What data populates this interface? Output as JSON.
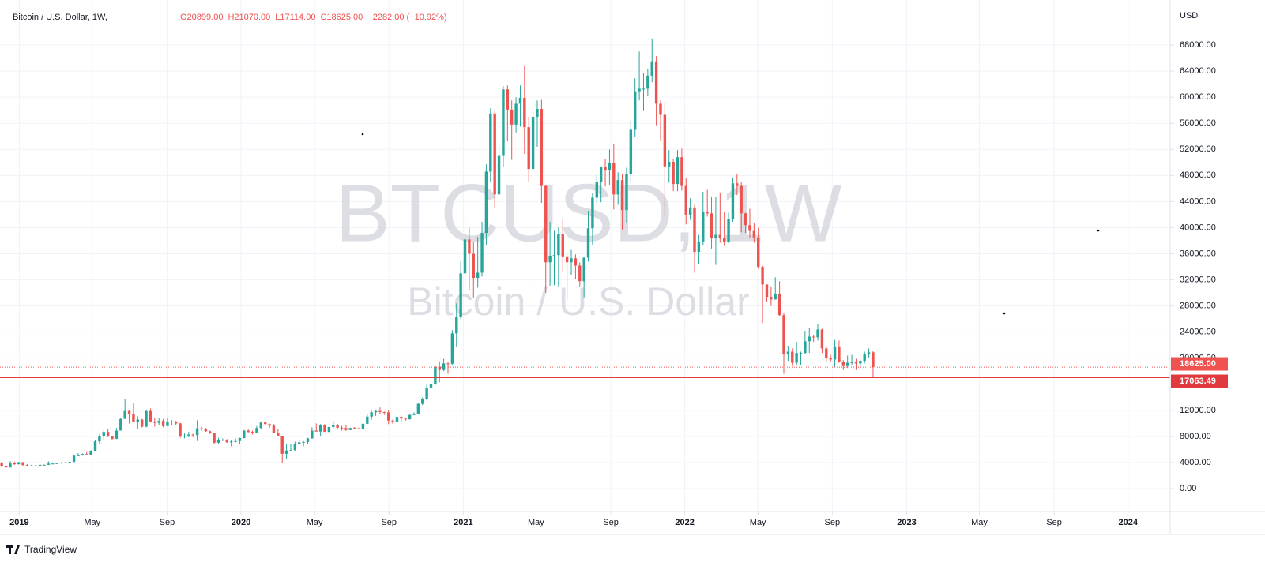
{
  "chart_data": {
    "type": "candlestick",
    "title": "Bitcoin / U.S. Dollar, 1W,",
    "ohlc_legend": [
      "O20899.00",
      "H21070.00",
      "L17114.00",
      "C18625.00",
      "−2282.00 (−10.92%)"
    ],
    "watermark": "BTCUSD, 1W",
    "watermark_subtitle": "Bitcoin / U.S. Dollar",
    "currency": "USD",
    "brand": "TradingView",
    "up_color": "#26a69a",
    "down_color": "#ef5350",
    "grid": true,
    "last_price": {
      "value": 18625,
      "label": "18625.00"
    },
    "price_line": {
      "value": 17063.49,
      "label": "17063.49",
      "color": "#e03a3e"
    },
    "ylim": [
      -3500,
      74900
    ],
    "xlim": [
      -0.4,
      274.9
    ],
    "yticks": [
      {
        "value": 0,
        "label": "0.00"
      },
      {
        "value": 4000,
        "label": "4000.00"
      },
      {
        "value": 8000,
        "label": "8000.00"
      },
      {
        "value": 12000,
        "label": "12000.00"
      },
      {
        "value": 20000,
        "label": "20000.00"
      },
      {
        "value": 24000,
        "label": "24000.00"
      },
      {
        "value": 28000,
        "label": "28000.00"
      },
      {
        "value": 32000,
        "label": "32000.00"
      },
      {
        "value": 36000,
        "label": "36000.00"
      },
      {
        "value": 40000,
        "label": "40000.00"
      },
      {
        "value": 44000,
        "label": "44000.00"
      },
      {
        "value": 48000,
        "label": "48000.00"
      },
      {
        "value": 52000,
        "label": "52000.00"
      },
      {
        "value": 56000,
        "label": "56000.00"
      },
      {
        "value": 60000,
        "label": "60000.00"
      },
      {
        "value": 64000,
        "label": "64000.00"
      },
      {
        "value": 68000,
        "label": "68000.00"
      }
    ],
    "xticks": [
      {
        "value": 4.14,
        "label": "2019"
      },
      {
        "value": 21.3,
        "label": "May"
      },
      {
        "value": 38.9,
        "label": "Sep"
      },
      {
        "value": 56.3,
        "label": "2020"
      },
      {
        "value": 73.6,
        "label": "May"
      },
      {
        "value": 91.1,
        "label": "Sep"
      },
      {
        "value": 108.6,
        "label": "2021"
      },
      {
        "value": 125.7,
        "label": "May"
      },
      {
        "value": 143.3,
        "label": "Sep"
      },
      {
        "value": 160.7,
        "label": "2022"
      },
      {
        "value": 177.9,
        "label": "May"
      },
      {
        "value": 195.4,
        "label": "Sep"
      },
      {
        "value": 212.9,
        "label": "2023"
      },
      {
        "value": 230,
        "label": "May"
      },
      {
        "value": 247.6,
        "label": "Sep"
      },
      {
        "value": 265,
        "label": "2024"
      }
    ],
    "candles": [
      [
        4000,
        4100,
        3250,
        3500
      ],
      [
        3500,
        3600,
        3200,
        3250
      ],
      [
        3250,
        4200,
        3250,
        4000
      ],
      [
        4000,
        4150,
        3650,
        3750
      ],
      [
        3750,
        4100,
        3700,
        4050
      ],
      [
        4050,
        4100,
        3550,
        3600
      ],
      [
        3600,
        3750,
        3500,
        3550
      ],
      [
        3550,
        3650,
        3500,
        3550
      ],
      [
        3550,
        3600,
        3380,
        3400
      ],
      [
        3400,
        3700,
        3380,
        3650
      ],
      [
        3650,
        3700,
        3600,
        3650
      ],
      [
        3650,
        4200,
        3650,
        3850
      ],
      [
        3850,
        3900,
        3750,
        3850
      ],
      [
        3850,
        3950,
        3800,
        3900
      ],
      [
        3900,
        4050,
        3850,
        4000
      ],
      [
        4000,
        4100,
        3950,
        4000
      ],
      [
        4000,
        4150,
        3950,
        4100
      ],
      [
        4100,
        5100,
        4100,
        5050
      ],
      [
        5050,
        5450,
        5000,
        5100
      ],
      [
        5100,
        5400,
        5050,
        5300
      ],
      [
        5300,
        5600,
        5100,
        5200
      ],
      [
        5200,
        5900,
        5200,
        5750
      ],
      [
        5750,
        7400,
        5750,
        7250
      ],
      [
        7250,
        8300,
        6800,
        8000
      ],
      [
        8000,
        8900,
        7500,
        8700
      ],
      [
        8700,
        9100,
        7900,
        8000
      ],
      [
        8000,
        8100,
        7500,
        7650
      ],
      [
        7650,
        9300,
        7600,
        8900
      ],
      [
        8900,
        10900,
        8900,
        10700
      ],
      [
        10700,
        13800,
        10700,
        11900
      ],
      [
        11900,
        12000,
        10000,
        11400
      ],
      [
        11400,
        13100,
        10200,
        10200
      ],
      [
        10200,
        11100,
        9100,
        10600
      ],
      [
        10600,
        10700,
        9400,
        9500
      ],
      [
        9500,
        12100,
        9400,
        11900
      ],
      [
        11900,
        12300,
        10200,
        10300
      ],
      [
        10300,
        10900,
        9500,
        10100
      ],
      [
        10100,
        10900,
        9800,
        10400
      ],
      [
        10400,
        10700,
        9400,
        9600
      ],
      [
        9600,
        10900,
        9600,
        10300
      ],
      [
        10300,
        10500,
        9800,
        10300
      ],
      [
        10300,
        10400,
        9800,
        10000
      ],
      [
        10000,
        10100,
        7800,
        8000
      ],
      [
        8000,
        8500,
        7700,
        8100
      ],
      [
        8100,
        8700,
        7900,
        8300
      ],
      [
        8300,
        8400,
        7900,
        8200
      ],
      [
        8200,
        10500,
        7300,
        9250
      ],
      [
        9250,
        9500,
        8900,
        9200
      ],
      [
        9200,
        9300,
        8700,
        8800
      ],
      [
        8800,
        8900,
        8400,
        8500
      ],
      [
        8500,
        8600,
        6800,
        7050
      ],
      [
        7050,
        7800,
        6850,
        7400
      ],
      [
        7400,
        7700,
        7300,
        7500
      ],
      [
        7500,
        7600,
        7050,
        7100
      ],
      [
        7100,
        7500,
        6500,
        7250
      ],
      [
        7250,
        7700,
        7100,
        7300
      ],
      [
        7300,
        7800,
        6900,
        7750
      ],
      [
        7750,
        9000,
        7700,
        8900
      ],
      [
        8900,
        9200,
        8500,
        8700
      ],
      [
        8700,
        8900,
        8300,
        8600
      ],
      [
        8600,
        9600,
        8600,
        9300
      ],
      [
        9300,
        10200,
        9200,
        10150
      ],
      [
        10150,
        10500,
        9700,
        9900
      ],
      [
        9900,
        10000,
        9300,
        9650
      ],
      [
        9650,
        9900,
        8500,
        8550
      ],
      [
        8550,
        9200,
        8000,
        8000
      ],
      [
        8000,
        8000,
        3900,
        5350
      ],
      [
        5350,
        6900,
        4500,
        5850
      ],
      [
        5850,
        6900,
        5750,
        5900
      ],
      [
        5900,
        7200,
        5850,
        6900
      ],
      [
        6900,
        7450,
        6750,
        7100
      ],
      [
        7100,
        7300,
        6500,
        7150
      ],
      [
        7150,
        7800,
        6800,
        7700
      ],
      [
        7700,
        9400,
        7650,
        8900
      ],
      [
        8900,
        10000,
        8800,
        8750
      ],
      [
        8750,
        9900,
        8100,
        9700
      ],
      [
        9700,
        9900,
        8800,
        8700
      ],
      [
        8700,
        9600,
        8600,
        9450
      ],
      [
        9450,
        10400,
        9300,
        9750
      ],
      [
        9750,
        9950,
        9100,
        9350
      ],
      [
        9350,
        9600,
        8900,
        9300
      ],
      [
        9300,
        9700,
        8850,
        9000
      ],
      [
        9000,
        9350,
        8950,
        9300
      ],
      [
        9300,
        9450,
        9100,
        9250
      ],
      [
        9250,
        9300,
        9100,
        9200
      ],
      [
        9200,
        9950,
        9150,
        9950
      ],
      [
        9950,
        11450,
        9900,
        11050
      ],
      [
        11050,
        11900,
        10600,
        11700
      ],
      [
        11700,
        12100,
        11150,
        11900
      ],
      [
        11900,
        12450,
        11400,
        11750
      ],
      [
        11750,
        11800,
        11300,
        11700
      ],
      [
        11700,
        12050,
        9900,
        10450
      ],
      [
        10450,
        10600,
        9900,
        10300
      ],
      [
        10300,
        11100,
        10200,
        11000
      ],
      [
        11000,
        11200,
        10150,
        10750
      ],
      [
        10750,
        10900,
        10400,
        10650
      ],
      [
        10650,
        11400,
        10600,
        11300
      ],
      [
        11300,
        11700,
        11250,
        11500
      ],
      [
        11500,
        13200,
        11400,
        13000
      ],
      [
        13000,
        14000,
        12800,
        13800
      ],
      [
        13800,
        15950,
        13500,
        15500
      ],
      [
        15500,
        16450,
        15000,
        16000
      ],
      [
        16000,
        18800,
        15900,
        18700
      ],
      [
        18700,
        19400,
        16300,
        18200
      ],
      [
        18200,
        19900,
        18000,
        19200
      ],
      [
        19200,
        19400,
        17600,
        19150
      ],
      [
        19150,
        24300,
        19000,
        23800
      ],
      [
        23800,
        28400,
        21800,
        26300
      ],
      [
        26300,
        34800,
        26000,
        33000
      ],
      [
        33000,
        42000,
        30000,
        38200
      ],
      [
        38200,
        40000,
        30400,
        36000
      ],
      [
        36000,
        37800,
        29200,
        32300
      ],
      [
        32300,
        38600,
        30800,
        33100
      ],
      [
        33100,
        40900,
        32500,
        39200
      ],
      [
        39200,
        49700,
        37400,
        48600
      ],
      [
        48600,
        58300,
        47000,
        57500
      ],
      [
        57500,
        58000,
        43000,
        45100
      ],
      [
        45100,
        52600,
        44900,
        51000
      ],
      [
        51000,
        61700,
        49300,
        61200
      ],
      [
        61200,
        61800,
        53300,
        58100
      ],
      [
        58100,
        59500,
        50400,
        55800
      ],
      [
        55800,
        60000,
        54600,
        59000
      ],
      [
        59000,
        61800,
        55500,
        59900
      ],
      [
        59900,
        64900,
        51300,
        55400
      ],
      [
        55400,
        57000,
        47000,
        49000
      ],
      [
        49000,
        57900,
        48800,
        57000
      ],
      [
        57000,
        59500,
        52400,
        58200
      ],
      [
        58200,
        59600,
        43800,
        46400
      ],
      [
        46400,
        46600,
        30000,
        34700
      ],
      [
        34700,
        40900,
        31100,
        35700
      ],
      [
        35700,
        39500,
        31200,
        35800
      ],
      [
        35800,
        40100,
        31000,
        39000
      ],
      [
        39000,
        41300,
        33300,
        35600
      ],
      [
        35600,
        36100,
        28800,
        34700
      ],
      [
        34700,
        36600,
        32700,
        35300
      ],
      [
        35300,
        35900,
        32100,
        34200
      ],
      [
        34200,
        34700,
        31000,
        31800
      ],
      [
        31800,
        35500,
        29300,
        35400
      ],
      [
        35400,
        42600,
        34800,
        39900
      ],
      [
        39900,
        45300,
        37400,
        44600
      ],
      [
        44600,
        48100,
        43800,
        47000
      ],
      [
        47000,
        49400,
        43900,
        49300
      ],
      [
        49300,
        50500,
        46300,
        48800
      ],
      [
        48800,
        52000,
        46500,
        49900
      ],
      [
        49900,
        52900,
        42800,
        45100
      ],
      [
        45100,
        48500,
        43500,
        47300
      ],
      [
        47300,
        48300,
        39600,
        42700
      ],
      [
        42700,
        49200,
        40800,
        48200
      ],
      [
        48200,
        56500,
        47100,
        55000
      ],
      [
        55000,
        62900,
        53900,
        60900
      ],
      [
        60900,
        67000,
        59500,
        61300
      ],
      [
        61300,
        63700,
        58000,
        61300
      ],
      [
        61300,
        64300,
        60200,
        63300
      ],
      [
        63300,
        69000,
        62300,
        65500
      ],
      [
        65500,
        66300,
        55700,
        59000
      ],
      [
        59000,
        59500,
        53300,
        57300
      ],
      [
        57300,
        59200,
        42000,
        49400
      ],
      [
        49400,
        51900,
        46900,
        50100
      ],
      [
        50100,
        50600,
        45600,
        46700
      ],
      [
        46700,
        51900,
        45600,
        50800
      ],
      [
        50800,
        52100,
        45700,
        46400
      ],
      [
        46400,
        47600,
        40500,
        41900
      ],
      [
        41900,
        44500,
        41200,
        43100
      ],
      [
        43100,
        43500,
        33100,
        36300
      ],
      [
        36300,
        38900,
        34400,
        37900
      ],
      [
        37900,
        45500,
        37300,
        42400
      ],
      [
        42400,
        45800,
        41700,
        42200
      ],
      [
        42200,
        44700,
        36800,
        38400
      ],
      [
        38400,
        44700,
        34300,
        38900
      ],
      [
        38900,
        45400,
        37700,
        38400
      ],
      [
        38400,
        42400,
        37200,
        37800
      ],
      [
        37800,
        42300,
        37600,
        41300
      ],
      [
        41300,
        47700,
        40900,
        46800
      ],
      [
        46800,
        48200,
        45000,
        46400
      ],
      [
        46400,
        47000,
        39300,
        42200
      ],
      [
        42200,
        42300,
        39200,
        40400
      ],
      [
        40400,
        42900,
        38500,
        39500
      ],
      [
        39500,
        40800,
        37700,
        38500
      ],
      [
        38500,
        40000,
        33700,
        34000
      ],
      [
        34000,
        34200,
        25400,
        31300
      ],
      [
        31300,
        31300,
        28700,
        29400
      ],
      [
        29400,
        31000,
        28000,
        29000
      ],
      [
        29000,
        32400,
        29000,
        29900
      ],
      [
        29900,
        31800,
        26500,
        26600
      ],
      [
        26600,
        26900,
        17600,
        20600
      ],
      [
        20600,
        21900,
        19600,
        21000
      ],
      [
        21000,
        21500,
        18800,
        19300
      ],
      [
        19300,
        22500,
        19000,
        20800
      ],
      [
        20800,
        21000,
        18900,
        20800
      ],
      [
        20800,
        24200,
        20700,
        22600
      ],
      [
        22600,
        24600,
        20800,
        23300
      ],
      [
        23300,
        23600,
        22500,
        23200
      ],
      [
        23200,
        25200,
        22700,
        24400
      ],
      [
        24400,
        24500,
        20800,
        21500
      ],
      [
        21500,
        21900,
        19500,
        20000
      ],
      [
        20000,
        20500,
        19500,
        19800
      ],
      [
        19800,
        22800,
        18600,
        21800
      ],
      [
        21800,
        22700,
        19300,
        19400
      ],
      [
        19400,
        19700,
        18200,
        18800
      ],
      [
        18800,
        20400,
        18500,
        19300
      ],
      [
        19300,
        20500,
        19000,
        19400
      ],
      [
        19400,
        19900,
        18200,
        19200
      ],
      [
        19200,
        19700,
        18700,
        19600
      ],
      [
        19600,
        21000,
        19200,
        20600
      ],
      [
        20600,
        21500,
        20100,
        20900
      ],
      [
        20899,
        21070,
        17114,
        18625
      ]
    ]
  }
}
